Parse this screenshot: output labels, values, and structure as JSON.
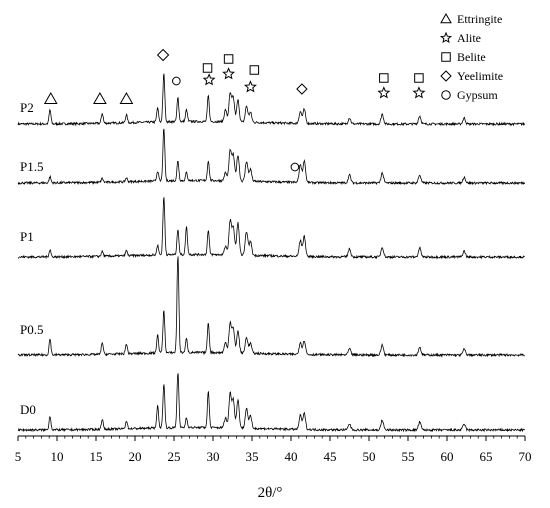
{
  "chart_data": {
    "type": "line",
    "xlabel": "2θ/°",
    "ylabel": "",
    "xlim": [
      5,
      70
    ],
    "x_ticks": [
      5,
      10,
      15,
      20,
      25,
      30,
      35,
      40,
      45,
      50,
      55,
      60,
      65,
      70
    ],
    "grid": false,
    "legend_position": "top-right",
    "legend": [
      {
        "marker": "triangle",
        "label": "Ettringite"
      },
      {
        "marker": "star",
        "label": "Alite"
      },
      {
        "marker": "square",
        "label": "Belite"
      },
      {
        "marker": "diamond",
        "label": "Yeelimite"
      },
      {
        "marker": "circle",
        "label": "Gypsum"
      }
    ],
    "series": [
      {
        "name": "P2",
        "peaks": [
          [
            9.1,
            14
          ],
          [
            15.8,
            10
          ],
          [
            18.9,
            8
          ],
          [
            22.9,
            14
          ],
          [
            23.7,
            48
          ],
          [
            25.5,
            24
          ],
          [
            26.6,
            12
          ],
          [
            29.4,
            26
          ],
          [
            31.6,
            12
          ],
          [
            32.2,
            28
          ],
          [
            32.6,
            24
          ],
          [
            33.2,
            22
          ],
          [
            34.3,
            16
          ],
          [
            34.8,
            10
          ],
          [
            41.2,
            12
          ],
          [
            41.7,
            14
          ],
          [
            47.5,
            6
          ],
          [
            51.7,
            10
          ],
          [
            56.5,
            8
          ],
          [
            62.2,
            6
          ]
        ]
      },
      {
        "name": "P1.5",
        "peaks": [
          [
            9.1,
            6
          ],
          [
            15.8,
            4
          ],
          [
            18.9,
            4
          ],
          [
            22.9,
            10
          ],
          [
            23.7,
            52
          ],
          [
            25.5,
            20
          ],
          [
            26.6,
            8
          ],
          [
            29.4,
            20
          ],
          [
            31.6,
            8
          ],
          [
            32.2,
            30
          ],
          [
            32.6,
            26
          ],
          [
            33.2,
            26
          ],
          [
            34.3,
            20
          ],
          [
            34.8,
            12
          ],
          [
            41.2,
            18
          ],
          [
            41.7,
            22
          ],
          [
            47.5,
            8
          ],
          [
            51.7,
            10
          ],
          [
            56.5,
            8
          ],
          [
            62.2,
            6
          ]
        ]
      },
      {
        "name": "P1",
        "peaks": [
          [
            9.1,
            7
          ],
          [
            15.8,
            5
          ],
          [
            18.9,
            5
          ],
          [
            22.9,
            10
          ],
          [
            23.7,
            58
          ],
          [
            25.5,
            26
          ],
          [
            26.6,
            28
          ],
          [
            29.4,
            24
          ],
          [
            31.6,
            8
          ],
          [
            32.2,
            34
          ],
          [
            32.6,
            28
          ],
          [
            33.2,
            32
          ],
          [
            34.3,
            24
          ],
          [
            34.8,
            14
          ],
          [
            41.2,
            16
          ],
          [
            41.7,
            20
          ],
          [
            47.5,
            8
          ],
          [
            51.7,
            10
          ],
          [
            56.5,
            9
          ],
          [
            62.2,
            6
          ]
        ]
      },
      {
        "name": "P0.5",
        "peaks": [
          [
            9.1,
            16
          ],
          [
            15.8,
            12
          ],
          [
            18.9,
            10
          ],
          [
            22.9,
            18
          ],
          [
            23.7,
            42
          ],
          [
            25.5,
            98
          ],
          [
            26.6,
            14
          ],
          [
            29.4,
            30
          ],
          [
            31.6,
            10
          ],
          [
            32.2,
            30
          ],
          [
            32.6,
            24
          ],
          [
            33.2,
            22
          ],
          [
            34.3,
            16
          ],
          [
            34.8,
            10
          ],
          [
            41.2,
            12
          ],
          [
            41.7,
            14
          ],
          [
            47.5,
            6
          ],
          [
            51.7,
            10
          ],
          [
            56.5,
            8
          ],
          [
            62.2,
            6
          ]
        ]
      },
      {
        "name": "D0",
        "peaks": [
          [
            9.1,
            14
          ],
          [
            15.8,
            10
          ],
          [
            18.9,
            8
          ],
          [
            22.9,
            22
          ],
          [
            23.7,
            44
          ],
          [
            25.5,
            56
          ],
          [
            26.6,
            10
          ],
          [
            29.4,
            36
          ],
          [
            31.6,
            10
          ],
          [
            32.2,
            34
          ],
          [
            32.6,
            28
          ],
          [
            33.2,
            28
          ],
          [
            34.3,
            20
          ],
          [
            34.8,
            12
          ],
          [
            41.2,
            14
          ],
          [
            41.7,
            16
          ],
          [
            47.5,
            6
          ],
          [
            51.7,
            10
          ],
          [
            56.5,
            8
          ],
          [
            62.2,
            6
          ]
        ]
      }
    ],
    "phase_annotations": [
      {
        "marker": "triangle",
        "x": [
          9.2,
          15.5,
          18.9
        ]
      },
      {
        "marker": "diamond",
        "x": [
          23.6
        ]
      },
      {
        "marker": "circle",
        "x": [
          25.3,
          40.5
        ]
      },
      {
        "marker": "square",
        "x": [
          29.3,
          32.0,
          35.3,
          51.9,
          56.4
        ]
      },
      {
        "marker": "star",
        "x": [
          29.5,
          32.0,
          34.8,
          51.9,
          56.4
        ]
      },
      {
        "marker": "diamond",
        "x": [
          41.4
        ]
      }
    ]
  }
}
